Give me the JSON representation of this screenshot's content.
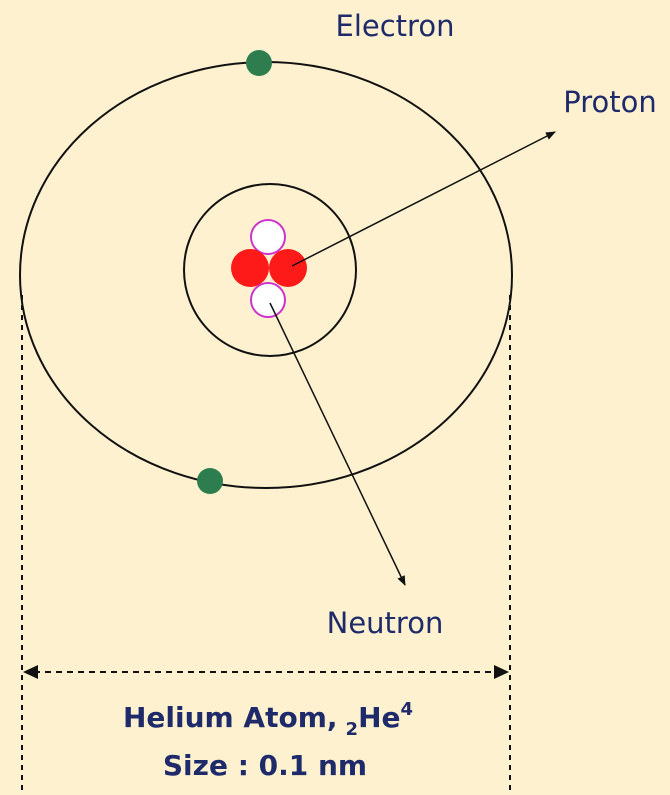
{
  "labels": {
    "electron": "Electron",
    "proton": "Proton",
    "neutron": "Neutron"
  },
  "caption": {
    "prefix": "Helium Atom,",
    "subscript": "2",
    "symbol": "He",
    "superscript": "4",
    "size": "Size : 0.1 nm"
  }
}
